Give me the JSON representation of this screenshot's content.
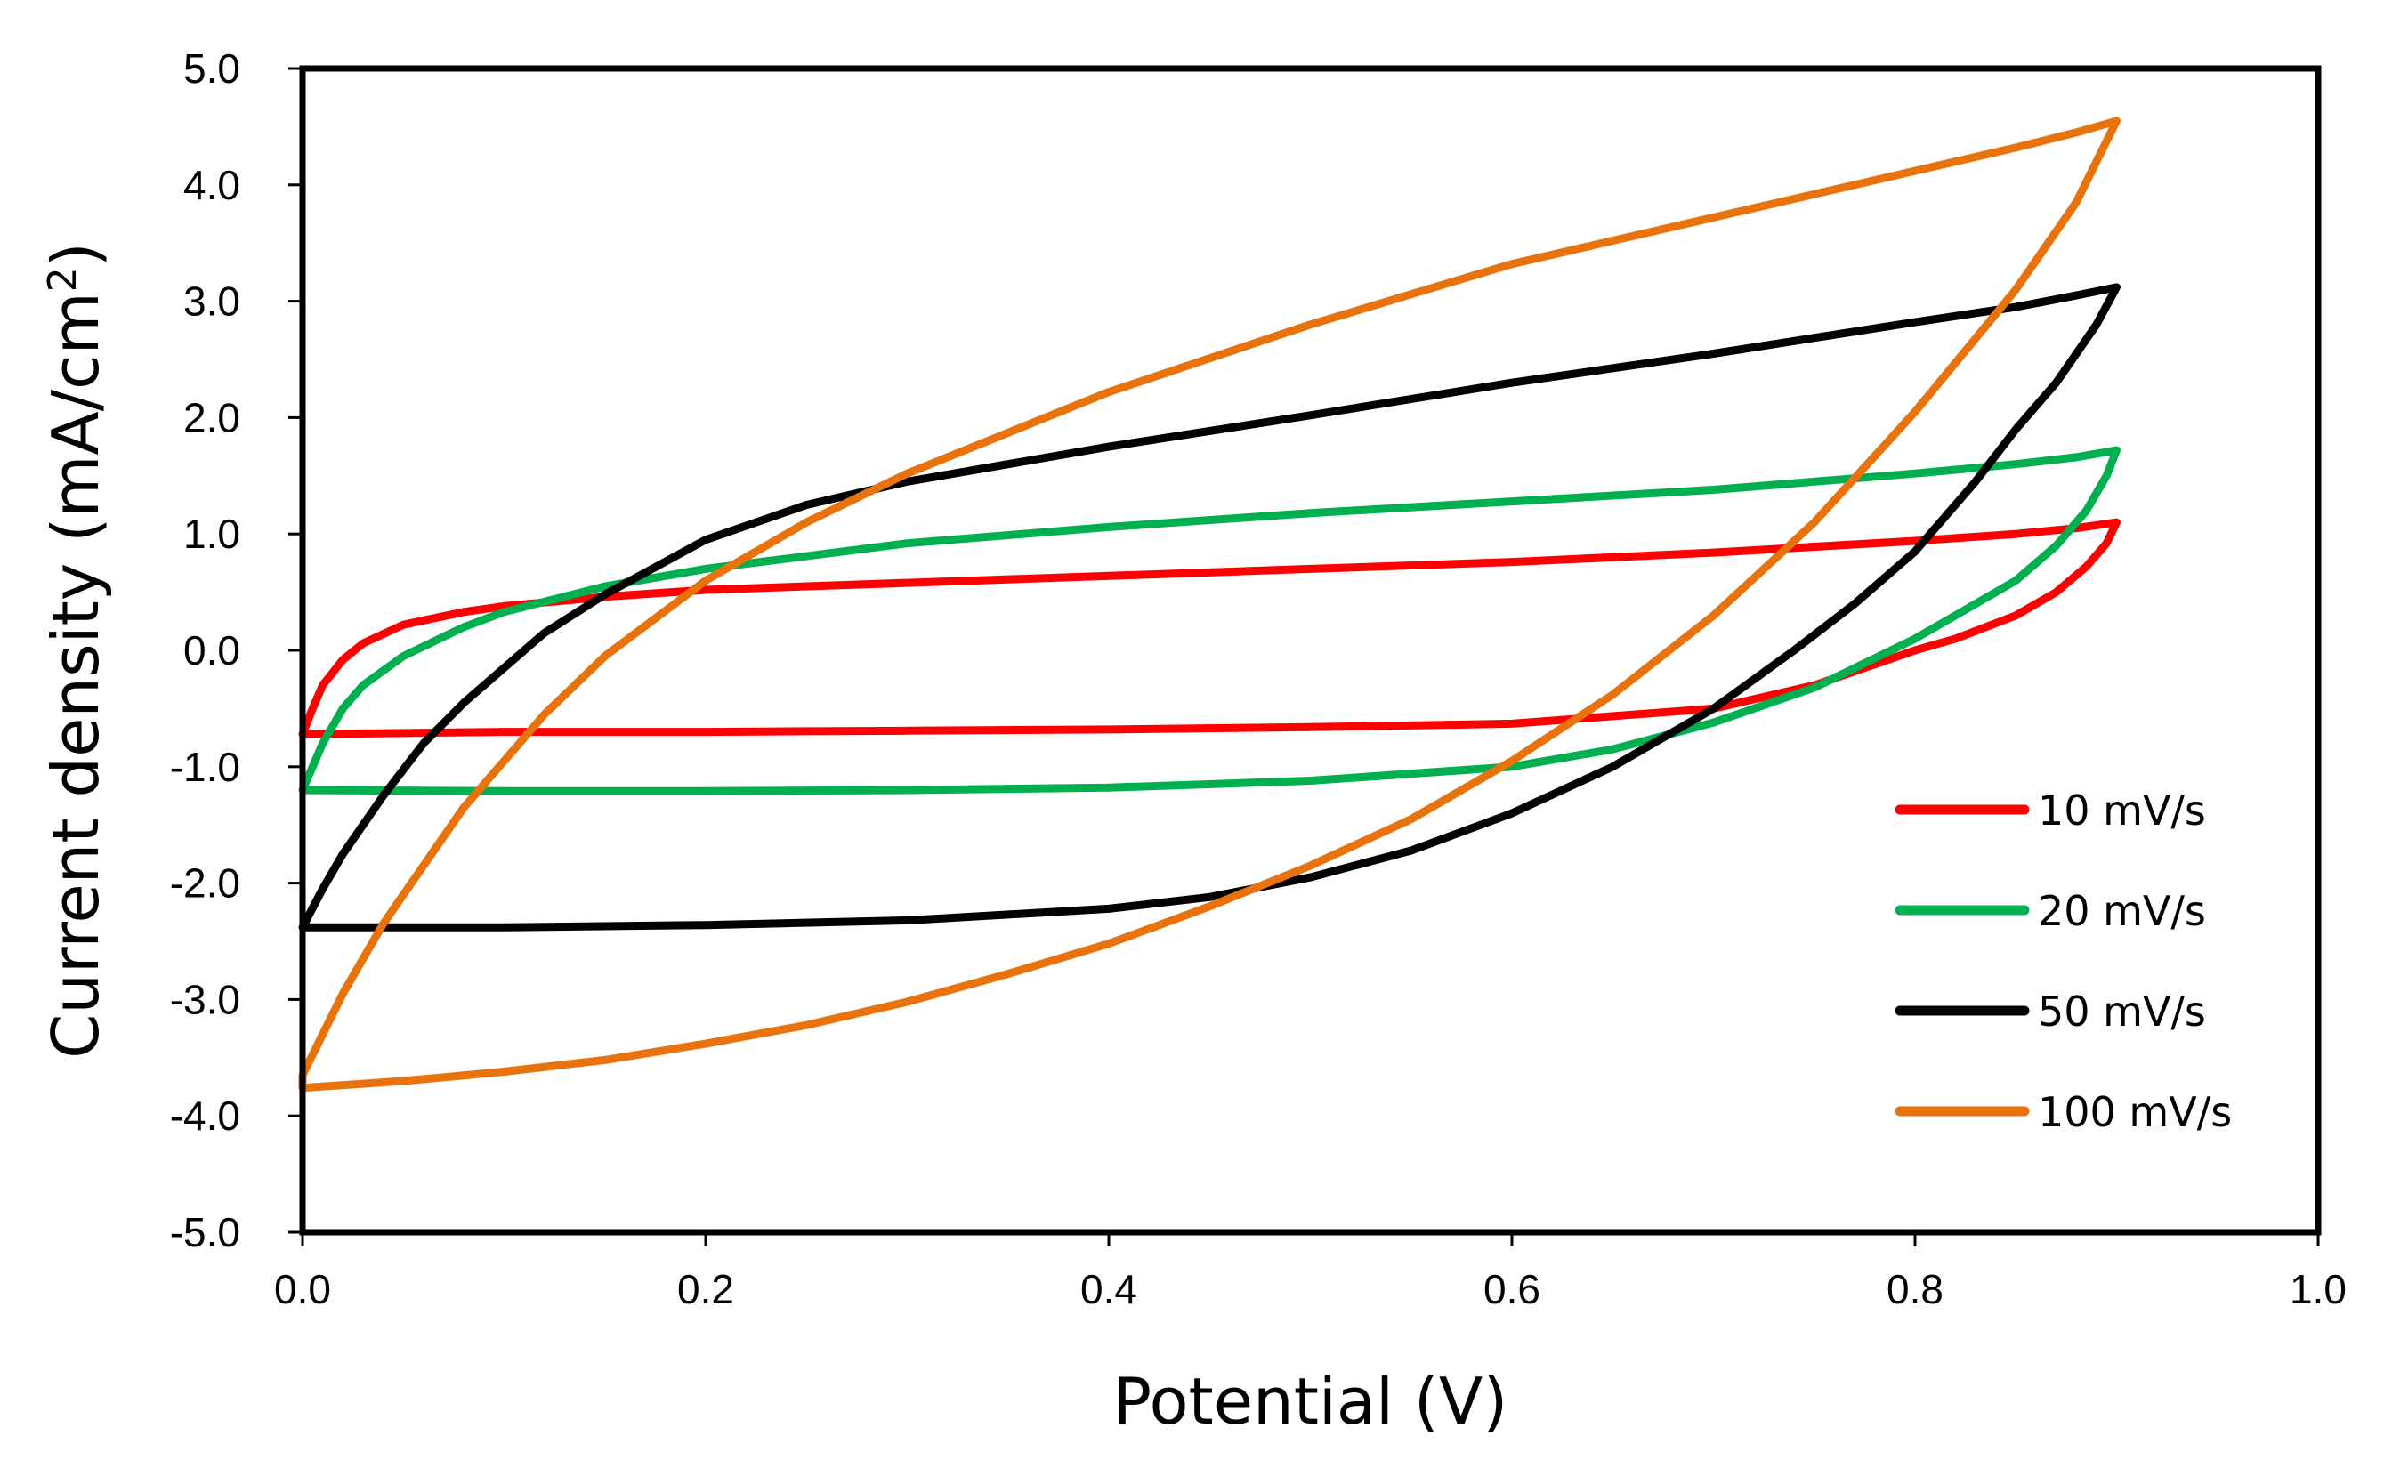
{
  "chart_data": {
    "type": "line",
    "xlabel": "Potential (V)",
    "ylabel_main": "Current density (mA/cm",
    "ylabel_sup": "2",
    "ylabel_close": ")",
    "xlim": [
      0.0,
      1.0
    ],
    "ylim": [
      -5.0,
      5.0
    ],
    "x_ticks": [
      "0.0",
      "0.2",
      "0.4",
      "0.6",
      "0.8",
      "1.0"
    ],
    "y_ticks": [
      "5.0",
      "4.0",
      "3.0",
      "2.0",
      "1.0",
      "0.0",
      "-1.0",
      "-2.0",
      "-3.0",
      "-4.0",
      "-5.0"
    ],
    "legend_position": "right-inside",
    "series": [
      {
        "name": "10 mV/s",
        "color": "#ff0000",
        "anodic": [
          [
            0.0,
            -0.72
          ],
          [
            0.005,
            -0.5
          ],
          [
            0.01,
            -0.3
          ],
          [
            0.02,
            -0.08
          ],
          [
            0.03,
            0.06
          ],
          [
            0.05,
            0.22
          ],
          [
            0.08,
            0.33
          ],
          [
            0.1,
            0.38
          ],
          [
            0.15,
            0.46
          ],
          [
            0.2,
            0.52
          ],
          [
            0.3,
            0.58
          ],
          [
            0.4,
            0.64
          ],
          [
            0.5,
            0.7
          ],
          [
            0.6,
            0.76
          ],
          [
            0.7,
            0.84
          ],
          [
            0.8,
            0.94
          ],
          [
            0.85,
            1.0
          ],
          [
            0.88,
            1.05
          ],
          [
            0.9,
            1.1
          ]
        ],
        "cathodic": [
          [
            0.9,
            1.1
          ],
          [
            0.895,
            0.92
          ],
          [
            0.885,
            0.72
          ],
          [
            0.87,
            0.5
          ],
          [
            0.85,
            0.3
          ],
          [
            0.82,
            0.1
          ],
          [
            0.8,
            0.0
          ],
          [
            0.75,
            -0.3
          ],
          [
            0.7,
            -0.5
          ],
          [
            0.6,
            -0.63
          ],
          [
            0.5,
            -0.66
          ],
          [
            0.4,
            -0.68
          ],
          [
            0.3,
            -0.69
          ],
          [
            0.2,
            -0.7
          ],
          [
            0.1,
            -0.7
          ],
          [
            0.0,
            -0.72
          ]
        ]
      },
      {
        "name": "20 mV/s",
        "color": "#00b050",
        "anodic": [
          [
            0.0,
            -1.2
          ],
          [
            0.005,
            -1.0
          ],
          [
            0.01,
            -0.8
          ],
          [
            0.02,
            -0.5
          ],
          [
            0.03,
            -0.3
          ],
          [
            0.05,
            -0.05
          ],
          [
            0.08,
            0.2
          ],
          [
            0.1,
            0.33
          ],
          [
            0.15,
            0.55
          ],
          [
            0.2,
            0.7
          ],
          [
            0.3,
            0.92
          ],
          [
            0.4,
            1.06
          ],
          [
            0.5,
            1.18
          ],
          [
            0.6,
            1.28
          ],
          [
            0.7,
            1.38
          ],
          [
            0.8,
            1.52
          ],
          [
            0.85,
            1.6
          ],
          [
            0.88,
            1.66
          ],
          [
            0.9,
            1.72
          ]
        ],
        "cathodic": [
          [
            0.9,
            1.72
          ],
          [
            0.895,
            1.5
          ],
          [
            0.885,
            1.2
          ],
          [
            0.87,
            0.9
          ],
          [
            0.85,
            0.6
          ],
          [
            0.82,
            0.3
          ],
          [
            0.8,
            0.1
          ],
          [
            0.75,
            -0.32
          ],
          [
            0.7,
            -0.62
          ],
          [
            0.65,
            -0.85
          ],
          [
            0.6,
            -1.0
          ],
          [
            0.5,
            -1.12
          ],
          [
            0.4,
            -1.18
          ],
          [
            0.3,
            -1.2
          ],
          [
            0.2,
            -1.21
          ],
          [
            0.1,
            -1.21
          ],
          [
            0.0,
            -1.2
          ]
        ]
      },
      {
        "name": "50 mV/s",
        "color": "#000000",
        "anodic": [
          [
            0.0,
            -2.38
          ],
          [
            0.01,
            -2.05
          ],
          [
            0.02,
            -1.75
          ],
          [
            0.04,
            -1.25
          ],
          [
            0.06,
            -0.8
          ],
          [
            0.08,
            -0.45
          ],
          [
            0.1,
            -0.15
          ],
          [
            0.12,
            0.15
          ],
          [
            0.15,
            0.48
          ],
          [
            0.2,
            0.95
          ],
          [
            0.25,
            1.25
          ],
          [
            0.3,
            1.45
          ],
          [
            0.4,
            1.75
          ],
          [
            0.5,
            2.02
          ],
          [
            0.6,
            2.3
          ],
          [
            0.7,
            2.55
          ],
          [
            0.8,
            2.82
          ],
          [
            0.85,
            2.95
          ],
          [
            0.88,
            3.05
          ],
          [
            0.9,
            3.12
          ]
        ],
        "cathodic": [
          [
            0.9,
            3.12
          ],
          [
            0.89,
            2.8
          ],
          [
            0.87,
            2.3
          ],
          [
            0.85,
            1.9
          ],
          [
            0.83,
            1.45
          ],
          [
            0.8,
            0.85
          ],
          [
            0.77,
            0.4
          ],
          [
            0.74,
            0.0
          ],
          [
            0.7,
            -0.5
          ],
          [
            0.65,
            -1.0
          ],
          [
            0.6,
            -1.4
          ],
          [
            0.55,
            -1.72
          ],
          [
            0.5,
            -1.95
          ],
          [
            0.45,
            -2.12
          ],
          [
            0.4,
            -2.22
          ],
          [
            0.3,
            -2.32
          ],
          [
            0.2,
            -2.36
          ],
          [
            0.1,
            -2.38
          ],
          [
            0.0,
            -2.38
          ]
        ]
      },
      {
        "name": "100 mV/s",
        "color": "#e8720c",
        "anodic": [
          [
            0.0,
            -3.65
          ],
          [
            0.01,
            -3.3
          ],
          [
            0.02,
            -2.95
          ],
          [
            0.04,
            -2.35
          ],
          [
            0.06,
            -1.85
          ],
          [
            0.08,
            -1.35
          ],
          [
            0.1,
            -0.95
          ],
          [
            0.12,
            -0.55
          ],
          [
            0.15,
            -0.05
          ],
          [
            0.2,
            0.6
          ],
          [
            0.25,
            1.1
          ],
          [
            0.3,
            1.52
          ],
          [
            0.4,
            2.22
          ],
          [
            0.5,
            2.8
          ],
          [
            0.6,
            3.32
          ],
          [
            0.7,
            3.72
          ],
          [
            0.8,
            4.12
          ],
          [
            0.85,
            4.32
          ],
          [
            0.88,
            4.45
          ],
          [
            0.9,
            4.55
          ]
        ],
        "cathodic": [
          [
            0.9,
            4.55
          ],
          [
            0.88,
            3.85
          ],
          [
            0.85,
            3.1
          ],
          [
            0.8,
            2.05
          ],
          [
            0.75,
            1.1
          ],
          [
            0.7,
            0.3
          ],
          [
            0.65,
            -0.38
          ],
          [
            0.6,
            -0.95
          ],
          [
            0.55,
            -1.45
          ],
          [
            0.5,
            -1.85
          ],
          [
            0.45,
            -2.2
          ],
          [
            0.4,
            -2.52
          ],
          [
            0.35,
            -2.78
          ],
          [
            0.3,
            -3.02
          ],
          [
            0.25,
            -3.22
          ],
          [
            0.2,
            -3.38
          ],
          [
            0.15,
            -3.52
          ],
          [
            0.1,
            -3.62
          ],
          [
            0.05,
            -3.7
          ],
          [
            0.0,
            -3.76
          ]
        ]
      }
    ]
  }
}
